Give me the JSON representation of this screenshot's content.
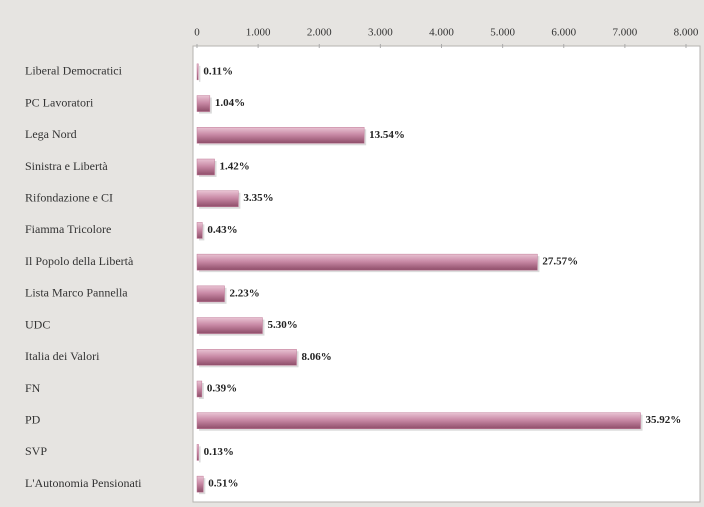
{
  "chart_data": {
    "type": "hbar",
    "categories": [
      "Liberal Democratici",
      "PC Lavoratori",
      "Lega Nord",
      "Sinistra e Libertà",
      "Rifondazione e CI",
      "Fiamma Tricolore",
      "Il Popolo della Libertà",
      "Lista Marco Pannella",
      "UDC",
      "Italia dei Valori",
      "FN",
      "PD",
      "SVP",
      "L'Autonomia Pensionati"
    ],
    "values": [
      22,
      210,
      2735,
      287,
      677,
      87,
      5569,
      450,
      1071,
      1628,
      79,
      7256,
      26,
      103
    ],
    "value_labels": [
      "0.11%",
      "1.04%",
      "13.54%",
      "1.42%",
      "3.35%",
      "0.43%",
      "27.57%",
      "2.23%",
      "5.30%",
      "8.06%",
      "0.39%",
      "35.92%",
      "0.13%",
      "0.51%"
    ],
    "color": "#c07a98",
    "xlim": [
      0,
      8000
    ],
    "xticks": [
      0,
      {
        "value": 1000,
        "label": "1.000"
      },
      {
        "value": 2000,
        "label": "2.000"
      },
      {
        "value": 3000,
        "label": "3.000"
      },
      {
        "value": 4000,
        "label": "4.000"
      },
      {
        "value": 5000,
        "label": "5.000"
      },
      {
        "value": 6000,
        "label": "6.000"
      },
      {
        "value": 7000,
        "label": "7.000"
      },
      {
        "value": 8000,
        "label": "8.000"
      }
    ]
  }
}
